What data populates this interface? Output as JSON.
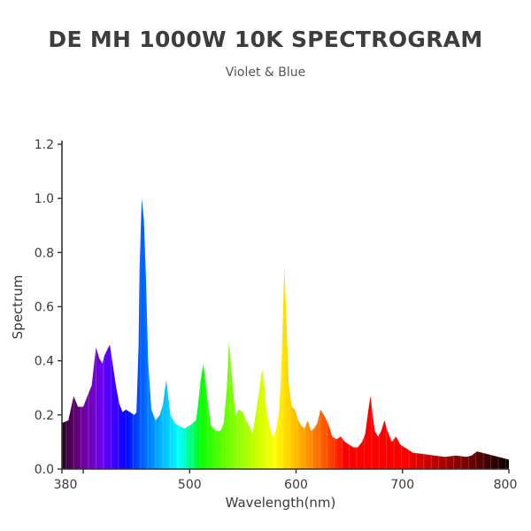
{
  "chart_data": {
    "type": "area",
    "title": "DE MH 1000W 10K SPECTROGRAM",
    "subtitle": "Violet & Blue",
    "xlabel": "Wavelength(nm)",
    "ylabel": "Spectrum",
    "xlim": [
      380,
      800
    ],
    "ylim": [
      0,
      1.2
    ],
    "x_ticks": [
      380,
      500,
      600,
      700,
      800
    ],
    "y_ticks": [
      "0.0",
      "0.2",
      "0.4",
      "0.6",
      "0.8",
      "1.0",
      "1.2"
    ],
    "grid": false,
    "series": [
      {
        "name": "Spectrum",
        "x": [
          380,
          386,
          391,
          395,
          400,
          404,
          408,
          412,
          415,
          418,
          420,
          425,
          428,
          431,
          434,
          437,
          440,
          444,
          448,
          450,
          452,
          453,
          455,
          457,
          459,
          461,
          464,
          468,
          472,
          475,
          478,
          482,
          486,
          490,
          495,
          500,
          503,
          506,
          508,
          510,
          513,
          516,
          520,
          525,
          529,
          532,
          535,
          537,
          540,
          543,
          546,
          550,
          553,
          556,
          559,
          562,
          565,
          568,
          570,
          572,
          575,
          578,
          581,
          584,
          586,
          588,
          589,
          591,
          593,
          596,
          599,
          602,
          605,
          608,
          611,
          614,
          617,
          620,
          623,
          626,
          630,
          634,
          638,
          642,
          646,
          650,
          654,
          658,
          662,
          665,
          668,
          670,
          672,
          674,
          677,
          680,
          683,
          686,
          690,
          694,
          698,
          702,
          706,
          710,
          720,
          730,
          740,
          750,
          760,
          765,
          770,
          775,
          780,
          790,
          800
        ],
        "values": [
          0.17,
          0.18,
          0.27,
          0.23,
          0.23,
          0.27,
          0.31,
          0.45,
          0.41,
          0.39,
          0.42,
          0.46,
          0.38,
          0.3,
          0.24,
          0.21,
          0.22,
          0.21,
          0.2,
          0.21,
          0.45,
          0.75,
          1.0,
          0.92,
          0.7,
          0.4,
          0.22,
          0.18,
          0.2,
          0.24,
          0.33,
          0.2,
          0.17,
          0.16,
          0.15,
          0.16,
          0.17,
          0.18,
          0.24,
          0.32,
          0.39,
          0.28,
          0.16,
          0.14,
          0.14,
          0.17,
          0.3,
          0.47,
          0.33,
          0.2,
          0.22,
          0.21,
          0.18,
          0.16,
          0.13,
          0.2,
          0.28,
          0.37,
          0.32,
          0.22,
          0.16,
          0.12,
          0.14,
          0.21,
          0.35,
          0.62,
          0.75,
          0.55,
          0.32,
          0.23,
          0.22,
          0.18,
          0.16,
          0.15,
          0.18,
          0.14,
          0.15,
          0.17,
          0.22,
          0.2,
          0.17,
          0.12,
          0.11,
          0.12,
          0.1,
          0.09,
          0.08,
          0.08,
          0.1,
          0.13,
          0.22,
          0.27,
          0.2,
          0.14,
          0.12,
          0.14,
          0.18,
          0.14,
          0.1,
          0.12,
          0.09,
          0.08,
          0.07,
          0.06,
          0.055,
          0.05,
          0.045,
          0.05,
          0.045,
          0.05,
          0.065,
          0.06,
          0.055,
          0.045,
          0.035
        ]
      }
    ]
  }
}
